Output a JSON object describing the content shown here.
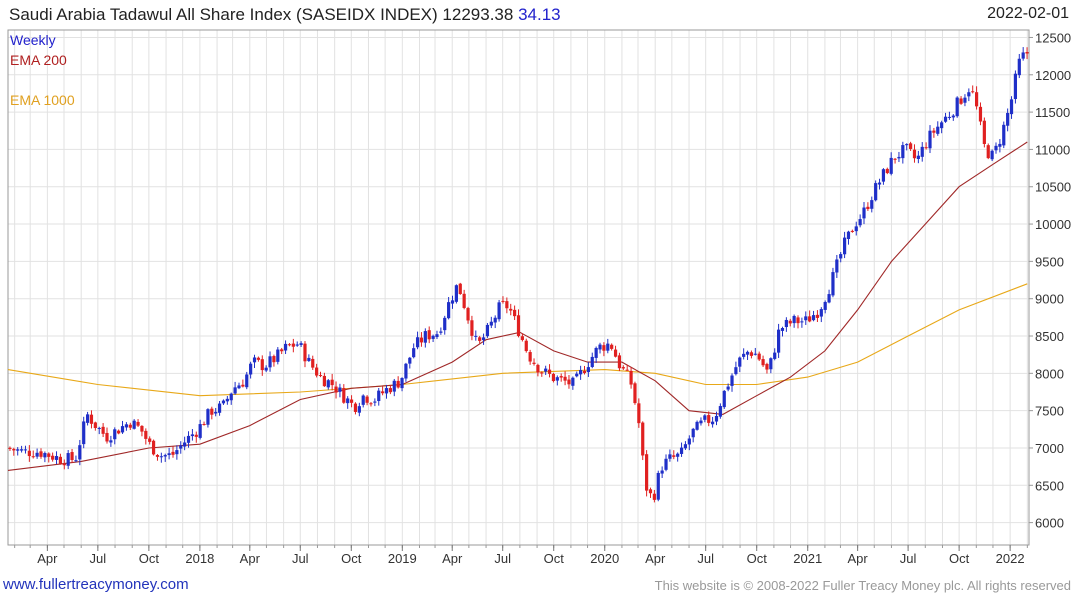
{
  "header": {
    "title": "Saudi Arabia Tadawul All Share Index (SASEIDX INDEX)",
    "last": "12293.38",
    "change": "34.13",
    "date": "2022-02-01"
  },
  "legend": {
    "weekly": "Weekly",
    "ema200": "EMA 200",
    "ema1000": "EMA 1000"
  },
  "footer": {
    "site": "www.fullertreacymoney.com",
    "copyright": "This website is © 2008-2022 Fuller Treacy Money plc. All rights reserved"
  },
  "colors": {
    "up": "#1f2fc8",
    "down": "#e02020",
    "ema200": "#a02828",
    "ema1000": "#e8a818",
    "grid": "#e2e2e2"
  },
  "chart_data": {
    "type": "candlestick",
    "frequency": "weekly",
    "ylim": [
      5700,
      12600
    ],
    "x_range": [
      "2017-01-20",
      "2022-02-04"
    ],
    "y_ticks": [
      6000,
      6500,
      7000,
      7500,
      8000,
      8500,
      9000,
      9500,
      10000,
      10500,
      11000,
      11500,
      12000,
      12500
    ],
    "x_ticks": [
      {
        "label": "Apr",
        "date": "2017-04-01"
      },
      {
        "label": "Jul",
        "date": "2017-07-01"
      },
      {
        "label": "Oct",
        "date": "2017-10-01"
      },
      {
        "label": "2018",
        "date": "2018-01-01"
      },
      {
        "label": "Apr",
        "date": "2018-04-01"
      },
      {
        "label": "Jul",
        "date": "2018-07-01"
      },
      {
        "label": "Oct",
        "date": "2018-10-01"
      },
      {
        "label": "2019",
        "date": "2019-01-01"
      },
      {
        "label": "Apr",
        "date": "2019-04-01"
      },
      {
        "label": "Jul",
        "date": "2019-07-01"
      },
      {
        "label": "Oct",
        "date": "2019-10-01"
      },
      {
        "label": "2020",
        "date": "2020-01-01"
      },
      {
        "label": "Apr",
        "date": "2020-04-01"
      },
      {
        "label": "Jul",
        "date": "2020-07-01"
      },
      {
        "label": "Oct",
        "date": "2020-10-01"
      },
      {
        "label": "2021",
        "date": "2021-01-01"
      },
      {
        "label": "Apr",
        "date": "2021-04-01"
      },
      {
        "label": "Jul",
        "date": "2021-07-01"
      },
      {
        "label": "Oct",
        "date": "2021-10-01"
      },
      {
        "label": "2022",
        "date": "2022-01-01"
      }
    ],
    "price_path": [
      [
        "2017-01-20",
        7000
      ],
      [
        "2017-02-20",
        6950
      ],
      [
        "2017-03-20",
        6950
      ],
      [
        "2017-04-10",
        6900
      ],
      [
        "2017-05-01",
        6850
      ],
      [
        "2017-05-25",
        6850
      ],
      [
        "2017-06-15",
        7450
      ],
      [
        "2017-07-01",
        7300
      ],
      [
        "2017-07-20",
        7150
      ],
      [
        "2017-08-10",
        7250
      ],
      [
        "2017-09-01",
        7350
      ],
      [
        "2017-09-20",
        7250
      ],
      [
        "2017-10-05",
        7050
      ],
      [
        "2017-10-25",
        6900
      ],
      [
        "2017-11-15",
        6900
      ],
      [
        "2017-12-10",
        7100
      ],
      [
        "2018-01-01",
        7250
      ],
      [
        "2018-01-25",
        7500
      ],
      [
        "2018-02-15",
        7550
      ],
      [
        "2018-03-05",
        7800
      ],
      [
        "2018-03-25",
        7900
      ],
      [
        "2018-04-10",
        8150
      ],
      [
        "2018-05-01",
        8100
      ],
      [
        "2018-05-20",
        8200
      ],
      [
        "2018-06-10",
        8350
      ],
      [
        "2018-07-01",
        8400
      ],
      [
        "2018-07-20",
        8150
      ],
      [
        "2018-08-10",
        7950
      ],
      [
        "2018-09-01",
        7850
      ],
      [
        "2018-09-20",
        7700
      ],
      [
        "2018-10-10",
        7550
      ],
      [
        "2018-10-25",
        7700
      ],
      [
        "2018-11-15",
        7650
      ],
      [
        "2018-12-10",
        7800
      ],
      [
        "2019-01-01",
        7900
      ],
      [
        "2019-01-25",
        8350
      ],
      [
        "2019-02-15",
        8500
      ],
      [
        "2019-03-10",
        8550
      ],
      [
        "2019-03-30",
        8950
      ],
      [
        "2019-04-15",
        9200
      ],
      [
        "2019-05-01",
        8800
      ],
      [
        "2019-05-20",
        8350
      ],
      [
        "2019-06-10",
        8600
      ],
      [
        "2019-06-30",
        8900
      ],
      [
        "2019-07-15",
        8900
      ],
      [
        "2019-08-01",
        8600
      ],
      [
        "2019-08-20",
        8250
      ],
      [
        "2019-09-10",
        8050
      ],
      [
        "2019-10-01",
        7950
      ],
      [
        "2019-10-20",
        7900
      ],
      [
        "2019-11-10",
        7850
      ],
      [
        "2019-12-01",
        8100
      ],
      [
        "2019-12-25",
        8350
      ],
      [
        "2020-01-15",
        8400
      ],
      [
        "2020-02-01",
        8100
      ],
      [
        "2020-02-20",
        7900
      ],
      [
        "2020-03-05",
        7400
      ],
      [
        "2020-03-18",
        6500
      ],
      [
        "2020-03-31",
        6300
      ],
      [
        "2020-04-15",
        6750
      ],
      [
        "2020-05-01",
        6850
      ],
      [
        "2020-05-20",
        6900
      ],
      [
        "2020-06-10",
        7200
      ],
      [
        "2020-07-01",
        7350
      ],
      [
        "2020-07-20",
        7400
      ],
      [
        "2020-08-10",
        7800
      ],
      [
        "2020-09-01",
        8150
      ],
      [
        "2020-09-20",
        8300
      ],
      [
        "2020-10-05",
        8250
      ],
      [
        "2020-10-25",
        8000
      ],
      [
        "2020-11-15",
        8600
      ],
      [
        "2020-12-10",
        8700
      ],
      [
        "2021-01-01",
        8700
      ],
      [
        "2021-01-25",
        8850
      ],
      [
        "2021-02-15",
        9200
      ],
      [
        "2021-03-10",
        9700
      ],
      [
        "2021-03-30",
        10000
      ],
      [
        "2021-04-15",
        10150
      ],
      [
        "2021-05-01",
        10400
      ],
      [
        "2021-05-20",
        10650
      ],
      [
        "2021-06-10",
        10900
      ],
      [
        "2021-06-30",
        11000
      ],
      [
        "2021-07-20",
        10850
      ],
      [
        "2021-08-10",
        11150
      ],
      [
        "2021-09-01",
        11350
      ],
      [
        "2021-09-20",
        11500
      ],
      [
        "2021-10-10",
        11700
      ],
      [
        "2021-10-25",
        11850
      ],
      [
        "2021-11-05",
        11550
      ],
      [
        "2021-11-20",
        11000
      ],
      [
        "2021-12-05",
        10900
      ],
      [
        "2021-12-20",
        11200
      ],
      [
        "2022-01-05",
        11600
      ],
      [
        "2022-01-20",
        12150
      ],
      [
        "2022-02-01",
        12293
      ]
    ],
    "ema200": [
      [
        "2017-01-20",
        6700
      ],
      [
        "2017-06-01",
        6820
      ],
      [
        "2017-10-01",
        7000
      ],
      [
        "2018-01-01",
        7050
      ],
      [
        "2018-04-01",
        7300
      ],
      [
        "2018-07-01",
        7650
      ],
      [
        "2018-10-01",
        7800
      ],
      [
        "2019-01-01",
        7850
      ],
      [
        "2019-04-01",
        8150
      ],
      [
        "2019-06-01",
        8450
      ],
      [
        "2019-08-01",
        8550
      ],
      [
        "2019-10-01",
        8300
      ],
      [
        "2019-12-01",
        8150
      ],
      [
        "2020-02-01",
        8150
      ],
      [
        "2020-04-01",
        7900
      ],
      [
        "2020-06-01",
        7500
      ],
      [
        "2020-08-01",
        7450
      ],
      [
        "2020-10-01",
        7700
      ],
      [
        "2020-12-01",
        7950
      ],
      [
        "2021-02-01",
        8300
      ],
      [
        "2021-04-01",
        8850
      ],
      [
        "2021-06-01",
        9500
      ],
      [
        "2021-08-01",
        10000
      ],
      [
        "2021-10-01",
        10500
      ],
      [
        "2021-12-01",
        10800
      ],
      [
        "2022-02-01",
        11100
      ]
    ],
    "ema1000": [
      [
        "2017-01-20",
        8050
      ],
      [
        "2017-07-01",
        7850
      ],
      [
        "2018-01-01",
        7700
      ],
      [
        "2018-07-01",
        7750
      ],
      [
        "2019-01-01",
        7850
      ],
      [
        "2019-07-01",
        8000
      ],
      [
        "2020-01-01",
        8050
      ],
      [
        "2020-04-01",
        8000
      ],
      [
        "2020-07-01",
        7850
      ],
      [
        "2020-10-01",
        7850
      ],
      [
        "2021-01-01",
        7950
      ],
      [
        "2021-04-01",
        8150
      ],
      [
        "2021-07-01",
        8500
      ],
      [
        "2021-10-01",
        8850
      ],
      [
        "2022-02-01",
        9200
      ]
    ]
  }
}
